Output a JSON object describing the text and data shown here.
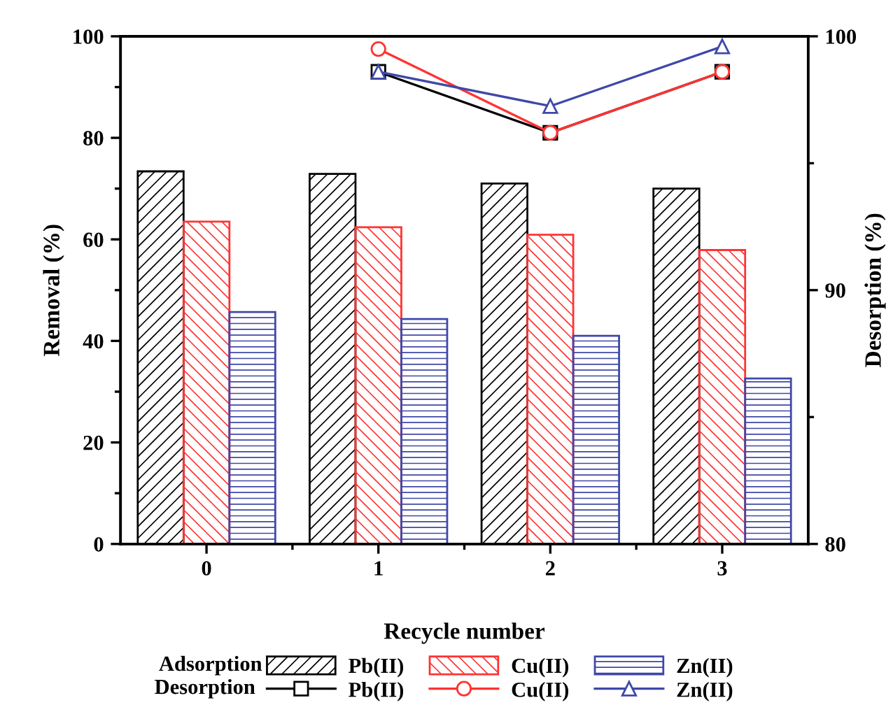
{
  "chart_data": {
    "type": "bar",
    "xlabel": "Recycle number",
    "ylabel": "Removal (%)",
    "y2label": "Desorption (%)",
    "categories": [
      "0",
      "1",
      "2",
      "3"
    ],
    "series": [
      {
        "name": "Pb(II)",
        "color": "#000000",
        "values": [
          73.4,
          72.9,
          71.0,
          70.0
        ]
      },
      {
        "name": "Pb(II)",
        "type": "line",
        "axis": "y2",
        "marker": "square",
        "color": "#000000",
        "values": [
          null,
          98.6,
          96.2,
          98.6
        ]
      },
      {
        "name": "Cu(II)",
        "color": "#ff3333",
        "values": [
          63.5,
          62.4,
          60.9,
          57.9
        ]
      },
      {
        "name": "Cu(II)",
        "type": "line",
        "axis": "y2",
        "marker": "circle",
        "color": "#ff3333",
        "values": [
          null,
          99.5,
          96.2,
          98.6
        ]
      },
      {
        "name": "Zn(II)",
        "color": "#3f48a8",
        "values": [
          45.7,
          44.3,
          41.0,
          32.6
        ]
      },
      {
        "name": "Zn(II)",
        "type": "line",
        "axis": "y2",
        "marker": "triangle",
        "color": "#3f48a8",
        "values": [
          null,
          98.6,
          97.25,
          99.6
        ]
      }
    ],
    "ylim": [
      0,
      100
    ],
    "yticks": [
      0,
      20,
      40,
      60,
      80,
      100
    ],
    "y2lim": [
      80,
      100
    ],
    "y2ticks": [
      80,
      90,
      100
    ],
    "legend": "bottom",
    "grid": false,
    "line_style": "solid",
    "annotations": [
      "Adsorption",
      "Desorption"
    ]
  }
}
